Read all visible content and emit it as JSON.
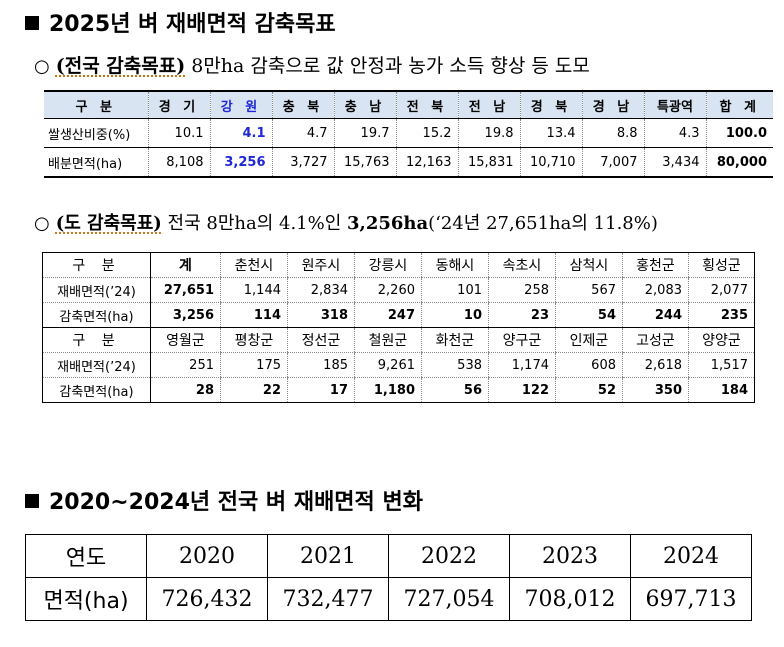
{
  "section1": {
    "heading": "2025년 벼 재배면적 감축목표",
    "national_goal": {
      "circle": "○",
      "label": "(전국 감축목표)",
      "text": " 8만ha 감축으로 값 안정과 농가 소득 향상 등 도모"
    },
    "national_table": {
      "header": [
        "구 분",
        "경 기",
        "강 원",
        "충 북",
        "충 남",
        "전 북",
        "전 남",
        "경 북",
        "경 남",
        "특광역",
        "합 계"
      ],
      "rows": [
        [
          "쌀생산비중(%)",
          "10.1",
          "4.1",
          "4.7",
          "19.7",
          "15.2",
          "19.8",
          "13.4",
          "8.8",
          "4.3",
          "100.0"
        ],
        [
          "배분면적(ha)",
          "8,108",
          "3,256",
          "3,727",
          "15,763",
          "12,163",
          "15,831",
          "10,710",
          "7,007",
          "3,434",
          "80,000"
        ]
      ]
    },
    "province_goal": {
      "circle": "○",
      "label": "(도 감축목표)",
      "text": " 전국 8만ha의 4.1%인 ",
      "bold_value": "3,256ha",
      "tail": "(‘24년 27,651ha의 11.8%)"
    },
    "province_table": {
      "block1": {
        "header": [
          "구 분",
          "계",
          "춘천시",
          "원주시",
          "강릉시",
          "동해시",
          "속초시",
          "삼척시",
          "홍천군",
          "횡성군"
        ],
        "area_label": "재배면적(’24)",
        "area": [
          "27,651",
          "1,144",
          "2,834",
          "2,260",
          "101",
          "258",
          "567",
          "2,083",
          "2,077"
        ],
        "cut_label": "감축면적(ha)",
        "cut": [
          "3,256",
          "114",
          "318",
          "247",
          "10",
          "23",
          "54",
          "244",
          "235"
        ]
      },
      "block2": {
        "header": [
          "구 분",
          "영월군",
          "평창군",
          "정선군",
          "철원군",
          "화천군",
          "양구군",
          "인제군",
          "고성군",
          "양양군"
        ],
        "area_label": "재배면적(’24)",
        "area": [
          "251",
          "175",
          "185",
          "9,261",
          "538",
          "1,174",
          "608",
          "2,618",
          "1,517"
        ],
        "cut_label": "감축면적(ha)",
        "cut": [
          "28",
          "22",
          "17",
          "1,180",
          "56",
          "122",
          "52",
          "350",
          "184"
        ]
      }
    }
  },
  "section2": {
    "heading": "2020~2024년 전국 벼 재배면적 변화",
    "table": {
      "header": [
        "연도",
        "2020",
        "2021",
        "2022",
        "2023",
        "2024"
      ],
      "row": [
        "면적(ha)",
        "726,432",
        "732,477",
        "727,054",
        "708,012",
        "697,713"
      ]
    }
  }
}
